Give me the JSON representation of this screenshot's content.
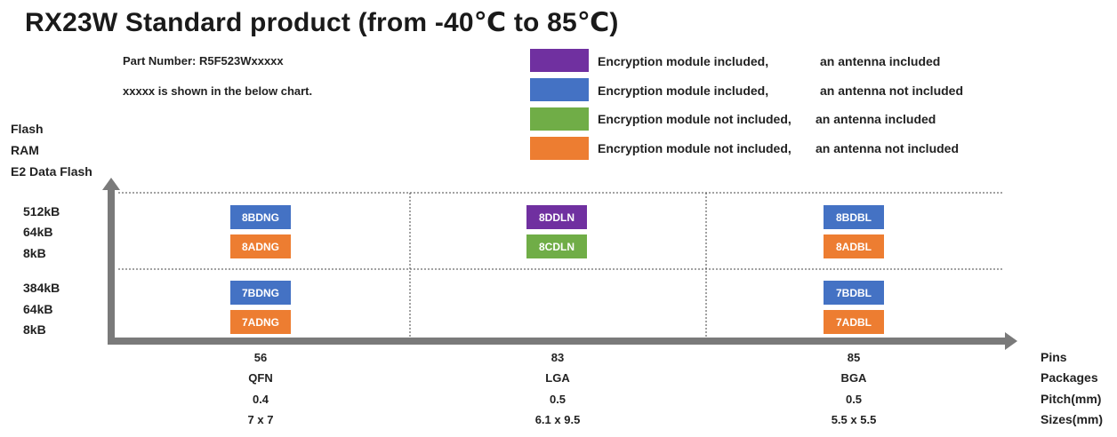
{
  "title": "RX23W Standard product (from -40℃ to 85℃)",
  "notes": {
    "part_number": "Part Number: R5F523Wxxxxx",
    "explain": "xxxxx is shown in the below chart."
  },
  "legend": [
    {
      "color": "#7030A0",
      "a": "Encryption module included,",
      "b": "an antenna included"
    },
    {
      "color": "#4472C4",
      "a": "Encryption module included,",
      "b": "an antenna not included"
    },
    {
      "color": "#70AD47",
      "a": "Encryption module not included,",
      "b": "an antenna included"
    },
    {
      "color": "#ED7D31",
      "a": "Encryption module not included,",
      "b": "an antenna not included"
    }
  ],
  "yaxis": {
    "labels": [
      "Flash",
      "RAM",
      "E2 Data Flash"
    ],
    "bands": [
      [
        "512kB",
        "64kB",
        "8kB"
      ],
      [
        "384kB",
        "64kB",
        "8kB"
      ]
    ]
  },
  "xaxis": {
    "row_labels": [
      "Pins",
      "Packages",
      "Pitch(mm)",
      "Sizes(mm)"
    ],
    "columns": [
      [
        "56",
        "QFN",
        "0.4",
        "7 x 7"
      ],
      [
        "83",
        "LGA",
        "0.5",
        "6.1 x 9.5"
      ],
      [
        "85",
        "BGA",
        "0.5",
        "5.5 x 5.5"
      ]
    ]
  },
  "cells": [
    {
      "text": "8BDNG",
      "color": "#4472C4"
    },
    {
      "text": "8ADNG",
      "color": "#ED7D31"
    },
    {
      "text": "8DDLN",
      "color": "#7030A0"
    },
    {
      "text": "8CDLN",
      "color": "#70AD47"
    },
    {
      "text": "8BDBL",
      "color": "#4472C4"
    },
    {
      "text": "8ADBL",
      "color": "#ED7D31"
    },
    {
      "text": "7BDNG",
      "color": "#4472C4"
    },
    {
      "text": "7ADNG",
      "color": "#ED7D31"
    },
    {
      "text": "7BDBL",
      "color": "#4472C4"
    },
    {
      "text": "7ADBL",
      "color": "#ED7D31"
    }
  ]
}
